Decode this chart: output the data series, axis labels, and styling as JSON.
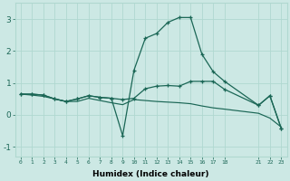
{
  "title": "",
  "xlabel": "Humidex (Indice chaleur)",
  "bg_color": "#cce8e4",
  "grid_color": "#b0d8d0",
  "line_color": "#1a6655",
  "xlim": [
    -0.5,
    23.5
  ],
  "ylim": [
    -1.3,
    3.5
  ],
  "yticks": [
    -1,
    0,
    1,
    2,
    3
  ],
  "xticks": [
    0,
    1,
    2,
    3,
    4,
    5,
    6,
    7,
    8,
    9,
    10,
    11,
    12,
    13,
    14,
    15,
    16,
    17,
    18,
    21,
    22,
    23
  ],
  "line1_x": [
    0,
    1,
    2,
    3,
    4,
    5,
    6,
    7,
    8,
    9,
    10,
    11,
    12,
    13,
    14,
    15,
    16,
    17,
    18,
    21,
    22,
    23
  ],
  "line1_y": [
    0.65,
    0.65,
    0.62,
    0.5,
    0.42,
    0.5,
    0.6,
    0.55,
    0.52,
    0.48,
    0.52,
    0.82,
    0.9,
    0.92,
    0.9,
    1.05,
    1.05,
    1.05,
    0.8,
    0.3,
    0.6,
    -0.42
  ],
  "line2_x": [
    0,
    1,
    2,
    3,
    4,
    5,
    6,
    7,
    8,
    9,
    10,
    11,
    12,
    13,
    14,
    15,
    16,
    17,
    18,
    21,
    22,
    23
  ],
  "line2_y": [
    0.65,
    0.65,
    0.62,
    0.5,
    0.42,
    0.5,
    0.6,
    0.55,
    0.52,
    -0.65,
    1.4,
    2.4,
    2.55,
    2.9,
    3.05,
    3.05,
    1.9,
    1.35,
    1.05,
    0.3,
    0.6,
    -0.42
  ],
  "line3_x": [
    0,
    1,
    2,
    3,
    4,
    5,
    6,
    7,
    8,
    9,
    10,
    11,
    12,
    13,
    14,
    15,
    16,
    17,
    18,
    21,
    22,
    23
  ],
  "line3_y": [
    0.65,
    0.62,
    0.58,
    0.5,
    0.42,
    0.42,
    0.52,
    0.45,
    0.38,
    0.32,
    0.48,
    0.45,
    0.42,
    0.4,
    0.38,
    0.35,
    0.28,
    0.22,
    0.18,
    0.05,
    -0.1,
    -0.38
  ]
}
